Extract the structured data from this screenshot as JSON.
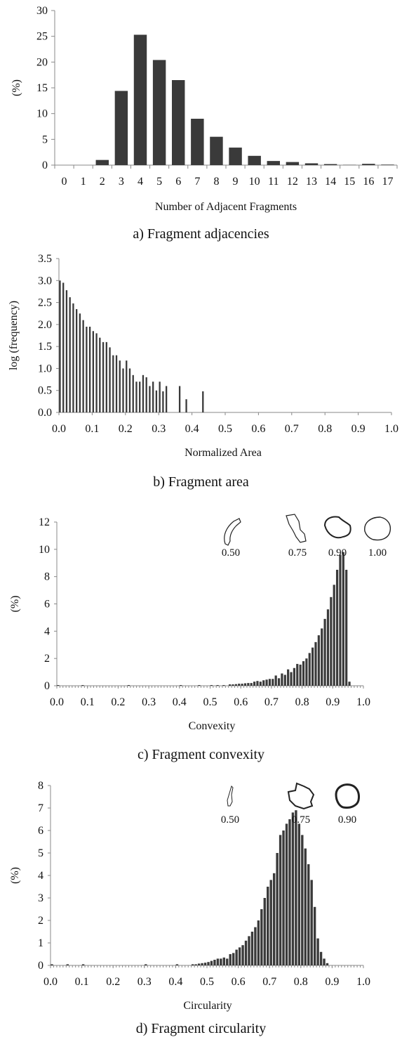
{
  "charts": {
    "a": {
      "caption": "a) Fragment adjacencies",
      "chart_data": {
        "type": "bar",
        "categories": [
          "0",
          "1",
          "2",
          "3",
          "4",
          "5",
          "6",
          "7",
          "8",
          "9",
          "10",
          "11",
          "12",
          "13",
          "14",
          "15",
          "16",
          "17"
        ],
        "values": [
          0,
          0,
          1.0,
          14.4,
          25.3,
          20.4,
          16.5,
          9.0,
          5.5,
          3.4,
          1.8,
          0.8,
          0.6,
          0.35,
          0.2,
          0.05,
          0.25,
          0.1
        ],
        "title": "",
        "xlabel": "Number of Adjacent Fragments",
        "ylabel": "(%)",
        "ylim": [
          0,
          30
        ],
        "yticks": [
          "0",
          "5",
          "10",
          "15",
          "20",
          "25",
          "30"
        ],
        "grid": false
      }
    },
    "b": {
      "caption": "b) Fragment area",
      "chart_data": {
        "type": "bar",
        "x": [
          0.0,
          0.01,
          0.02,
          0.03,
          0.04,
          0.05,
          0.06,
          0.07,
          0.08,
          0.09,
          0.1,
          0.11,
          0.12,
          0.13,
          0.14,
          0.15,
          0.16,
          0.17,
          0.18,
          0.19,
          0.2,
          0.21,
          0.22,
          0.23,
          0.24,
          0.25,
          0.26,
          0.27,
          0.28,
          0.29,
          0.3,
          0.31,
          0.32,
          0.36,
          0.38,
          0.43
        ],
        "values": [
          3.0,
          2.95,
          2.78,
          2.62,
          2.48,
          2.35,
          2.25,
          2.1,
          1.95,
          1.95,
          1.85,
          1.8,
          1.7,
          1.6,
          1.6,
          1.48,
          1.3,
          1.3,
          1.18,
          1.0,
          1.18,
          1.0,
          0.85,
          0.7,
          0.7,
          0.85,
          0.8,
          0.6,
          0.7,
          0.5,
          0.7,
          0.48,
          0.6,
          0.6,
          0.3,
          0.48
        ],
        "title": "",
        "xlabel": "Normalized Area",
        "ylabel": "log (frequency)",
        "xlim": [
          0,
          1.0
        ],
        "ylim": [
          0,
          3.5
        ],
        "xticks": [
          "0.0",
          "0.1",
          "0.2",
          "0.3",
          "0.4",
          "0.5",
          "0.6",
          "0.7",
          "0.8",
          "0.9",
          "1.0"
        ],
        "yticks": [
          "0.0",
          "0.5",
          "1.0",
          "1.5",
          "2.0",
          "2.5",
          "3.0",
          "3.5"
        ],
        "grid": false
      }
    },
    "c": {
      "caption": "c) Fragment convexity",
      "chart_data": {
        "type": "bar",
        "x": [
          0.0,
          0.08,
          0.23,
          0.4,
          0.46,
          0.5,
          0.52,
          0.54,
          0.56,
          0.57,
          0.58,
          0.59,
          0.6,
          0.61,
          0.62,
          0.63,
          0.64,
          0.65,
          0.66,
          0.67,
          0.68,
          0.69,
          0.7,
          0.71,
          0.72,
          0.73,
          0.74,
          0.75,
          0.76,
          0.77,
          0.78,
          0.79,
          0.8,
          0.81,
          0.82,
          0.83,
          0.84,
          0.85,
          0.86,
          0.87,
          0.88,
          0.89,
          0.9,
          0.91,
          0.92,
          0.93,
          0.94,
          0.95
        ],
        "values": [
          0.05,
          0.05,
          0.05,
          0.05,
          0.05,
          0.05,
          0.05,
          0.05,
          0.1,
          0.1,
          0.12,
          0.15,
          0.15,
          0.18,
          0.2,
          0.2,
          0.3,
          0.35,
          0.3,
          0.4,
          0.45,
          0.5,
          0.5,
          0.75,
          0.55,
          0.9,
          0.8,
          1.2,
          1.0,
          1.3,
          1.6,
          1.55,
          1.8,
          2.0,
          2.4,
          2.8,
          3.2,
          3.7,
          4.2,
          4.9,
          5.6,
          6.5,
          7.4,
          8.5,
          9.6,
          9.8,
          8.5,
          0.3
        ],
        "title": "",
        "xlabel": "Convexity",
        "ylabel": "(%)",
        "xlim": [
          0,
          1.0
        ],
        "ylim": [
          0,
          12
        ],
        "xticks": [
          "0.0",
          "0.1",
          "0.2",
          "0.3",
          "0.4",
          "0.5",
          "0.6",
          "0.7",
          "0.8",
          "0.9",
          "1.0"
        ],
        "yticks": [
          "0",
          "2",
          "4",
          "6",
          "8",
          "10",
          "12"
        ],
        "grid": false,
        "examples": [
          {
            "label": "0.50",
            "icon": "elongated-curved-fragment-icon"
          },
          {
            "label": "0.75",
            "icon": "irregular-fragment-icon"
          },
          {
            "label": "0.90",
            "icon": "mostly-convex-fragment-icon"
          },
          {
            "label": "1.00",
            "icon": "convex-fragment-icon"
          }
        ]
      }
    },
    "d": {
      "caption": "d) Fragment circularity",
      "chart_data": {
        "type": "bar",
        "x": [
          0.0,
          0.05,
          0.1,
          0.3,
          0.4,
          0.45,
          0.46,
          0.47,
          0.48,
          0.49,
          0.5,
          0.51,
          0.52,
          0.53,
          0.54,
          0.55,
          0.56,
          0.57,
          0.58,
          0.59,
          0.6,
          0.61,
          0.62,
          0.63,
          0.64,
          0.65,
          0.66,
          0.67,
          0.68,
          0.69,
          0.7,
          0.71,
          0.72,
          0.73,
          0.74,
          0.75,
          0.76,
          0.77,
          0.78,
          0.79,
          0.8,
          0.81,
          0.82,
          0.83,
          0.84,
          0.85,
          0.86,
          0.87,
          0.88
        ],
        "values": [
          0.05,
          0.05,
          0.05,
          0.05,
          0.05,
          0.05,
          0.05,
          0.08,
          0.1,
          0.12,
          0.15,
          0.2,
          0.25,
          0.3,
          0.3,
          0.35,
          0.3,
          0.5,
          0.55,
          0.7,
          0.8,
          0.9,
          1.1,
          1.3,
          1.5,
          1.7,
          2.0,
          2.5,
          3.0,
          3.5,
          3.8,
          4.1,
          5.0,
          5.8,
          6.0,
          6.3,
          6.5,
          6.8,
          6.9,
          6.3,
          5.8,
          5.2,
          4.5,
          3.8,
          2.6,
          1.2,
          0.6,
          0.3,
          0.1
        ],
        "title": "",
        "xlabel": "Circularity",
        "ylabel": "(%)",
        "xlim": [
          0,
          1.0
        ],
        "ylim": [
          0,
          8
        ],
        "xticks": [
          "0.0",
          "0.1",
          "0.2",
          "0.3",
          "0.4",
          "0.5",
          "0.6",
          "0.7",
          "0.8",
          "0.9",
          "1.0"
        ],
        "yticks": [
          "0",
          "1",
          "2",
          "3",
          "4",
          "5",
          "6",
          "7",
          "8"
        ],
        "grid": false,
        "examples": [
          {
            "label": "0.50",
            "icon": "thin-elongated-fragment-icon"
          },
          {
            "label": "0.75",
            "icon": "irregular-round-fragment-icon"
          },
          {
            "label": "0.90",
            "icon": "near-circular-fragment-icon"
          }
        ]
      }
    }
  }
}
